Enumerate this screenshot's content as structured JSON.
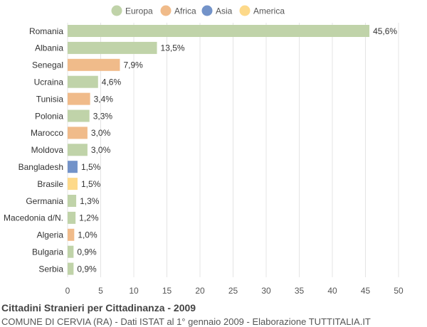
{
  "colors": {
    "Europa": "#c0d3a9",
    "Africa": "#f0bb8a",
    "Asia": "#7393c9",
    "America": "#fdd98a",
    "grid": "#e4e4e4",
    "text": "#333333"
  },
  "legend": [
    {
      "label": "Europa",
      "color": "#c0d3a9"
    },
    {
      "label": "Africa",
      "color": "#f0bb8a"
    },
    {
      "label": "Asia",
      "color": "#7393c9"
    },
    {
      "label": "America",
      "color": "#fdd98a"
    }
  ],
  "chart_data": {
    "type": "bar",
    "orientation": "horizontal",
    "categories": [
      "Romania",
      "Albania",
      "Senegal",
      "Ucraina",
      "Tunisia",
      "Polonia",
      "Marocco",
      "Moldova",
      "Bangladesh",
      "Brasile",
      "Germania",
      "Macedonia d/N.",
      "Algeria",
      "Bulgaria",
      "Serbia"
    ],
    "values": [
      45.6,
      13.5,
      7.9,
      4.6,
      3.4,
      3.3,
      3.0,
      3.0,
      1.5,
      1.5,
      1.3,
      1.2,
      1.0,
      0.9,
      0.9
    ],
    "value_labels": [
      "45,6%",
      "13,5%",
      "7,9%",
      "4,6%",
      "3,4%",
      "3,3%",
      "3,0%",
      "3,0%",
      "1,5%",
      "1,5%",
      "1,3%",
      "1,2%",
      "1,0%",
      "0,9%",
      "0,9%"
    ],
    "continents": [
      "Europa",
      "Europa",
      "Africa",
      "Europa",
      "Africa",
      "Europa",
      "Africa",
      "Europa",
      "Asia",
      "America",
      "Europa",
      "Europa",
      "Africa",
      "Europa",
      "Europa"
    ],
    "xlim": [
      0,
      50
    ],
    "xticks": [
      0,
      5,
      10,
      15,
      20,
      25,
      30,
      35,
      40,
      45,
      50
    ],
    "grid": true,
    "legend_position": "top-center"
  },
  "caption": {
    "title": "Cittadini Stranieri per Cittadinanza - 2009",
    "subtitle": "COMUNE DI CERVIA (RA) - Dati ISTAT al 1° gennaio 2009 - Elaborazione TUTTITALIA.IT"
  }
}
